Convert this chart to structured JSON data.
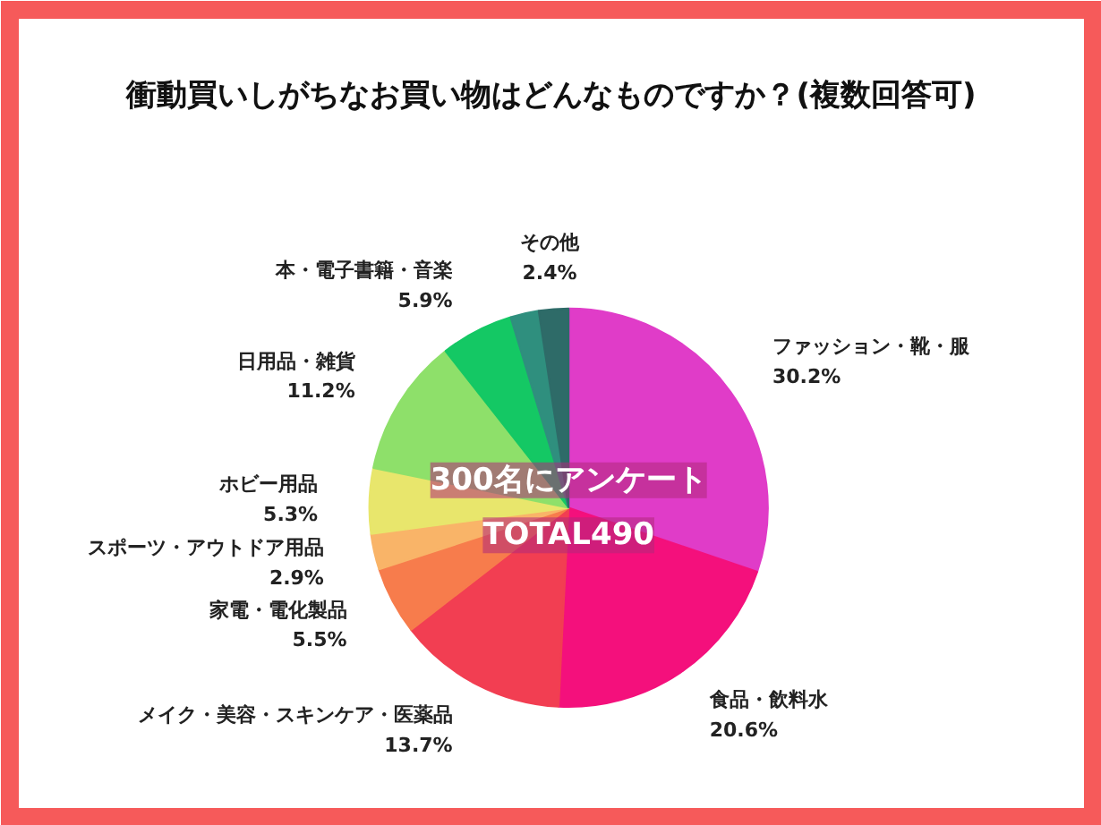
{
  "chart_data": {
    "type": "pie",
    "title": "衝動買いしがちなお買い物はどんなものですか？(複数回答可)",
    "categories": [
      "ファッション・靴・服",
      "食品・飲料水",
      "メイク・美容・スキンケア・医薬品",
      "家電・電化製品",
      "スポーツ・アウトドア用品",
      "ホビー用品",
      "日用品・雑貨",
      "本・電子書籍・音楽",
      null,
      "その他"
    ],
    "values": [
      30.2,
      20.6,
      13.7,
      5.5,
      2.9,
      5.3,
      11.2,
      5.9,
      2.3,
      2.4
    ],
    "colors": [
      "#e03cc8",
      "#f4107c",
      "#f23e52",
      "#f77c4c",
      "#f9b468",
      "#e8e66c",
      "#8ee06a",
      "#14c864",
      "#2f8f7e",
      "#2e6b68"
    ],
    "value_labels": [
      "30.2%",
      "20.6%",
      "13.7%",
      "5.5%",
      "2.9%",
      "5.3%",
      "11.2%",
      "5.9%",
      null,
      "2.4%"
    ],
    "annotations": [
      "300名にアンケート",
      "TOTAL490"
    ]
  }
}
